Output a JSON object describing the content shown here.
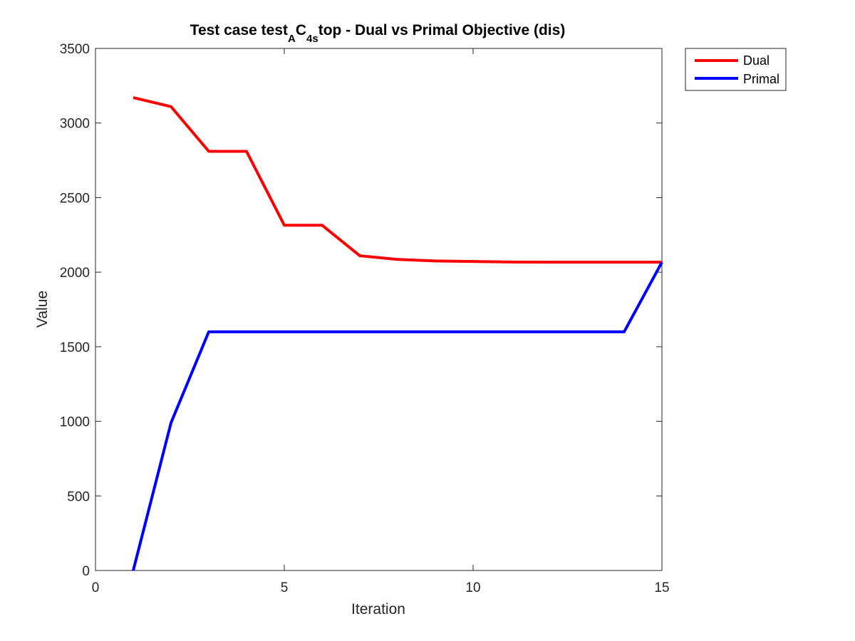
{
  "chart_data": {
    "type": "line",
    "title": {
      "prefix": "Test case test",
      "sub1": "A",
      "mid": "C",
      "sub2": "4s",
      "suffix": "top - Dual vs Primal Objective (dis)"
    },
    "xlabel": "Iteration",
    "ylabel": "Value",
    "xlim": [
      0,
      15
    ],
    "ylim": [
      0,
      3500
    ],
    "xticks": [
      0,
      5,
      10,
      15
    ],
    "yticks": [
      0,
      500,
      1000,
      1500,
      2000,
      2500,
      3000,
      3500
    ],
    "grid": false,
    "legend_position": "outside-top-right",
    "x": [
      1,
      2,
      3,
      4,
      5,
      6,
      7,
      8,
      9,
      10,
      11,
      12,
      13,
      14,
      15
    ],
    "series": [
      {
        "name": "Dual",
        "color": "#ff0000",
        "values": [
          3170,
          3110,
          2810,
          2810,
          2315,
          2315,
          2110,
          2085,
          2075,
          2072,
          2068,
          2067,
          2067,
          2067,
          2067
        ]
      },
      {
        "name": "Primal",
        "color": "#0000ff",
        "values": [
          0,
          990,
          1600,
          1600,
          1600,
          1600,
          1600,
          1600,
          1600,
          1600,
          1600,
          1600,
          1600,
          1600,
          2067
        ]
      }
    ]
  }
}
